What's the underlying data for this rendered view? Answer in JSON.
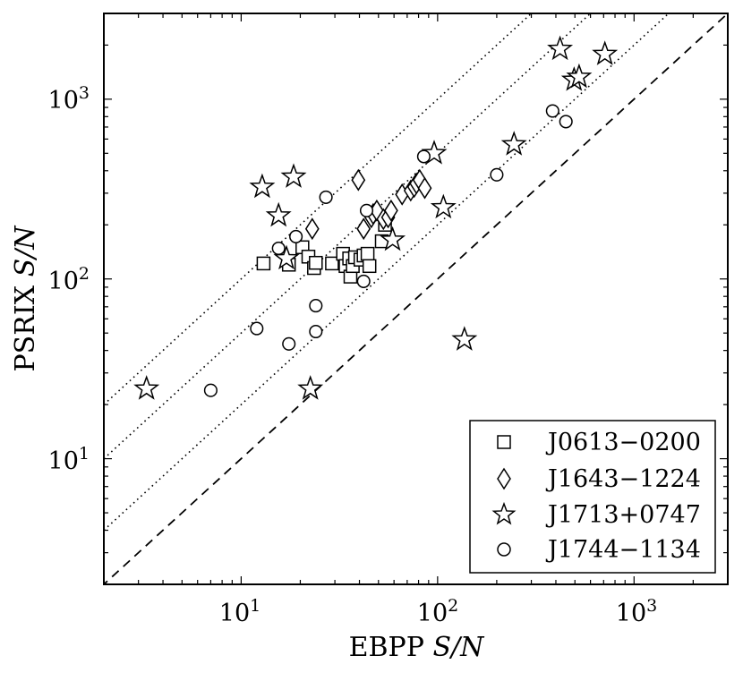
{
  "chart_data": {
    "type": "scatter",
    "xlabel": {
      "text": "EBPP",
      "italic": "S/N"
    },
    "ylabel": {
      "text": "PSRIX",
      "italic": "S/N"
    },
    "x_scale": "log",
    "y_scale": "log",
    "xlim": [
      2,
      3000
    ],
    "ylim": [
      2,
      3000
    ],
    "x_ticks": [
      {
        "base": "10",
        "exp": "1",
        "value": 10
      },
      {
        "base": "10",
        "exp": "2",
        "value": 100
      },
      {
        "base": "10",
        "exp": "3",
        "value": 1000
      }
    ],
    "y_ticks": [
      {
        "base": "10",
        "exp": "1",
        "value": 10
      },
      {
        "base": "10",
        "exp": "2",
        "value": 100
      },
      {
        "base": "10",
        "exp": "3",
        "value": 1000
      }
    ],
    "grid": false,
    "legend_position": "bottom-right",
    "reference_lines": [
      {
        "style": "dashed",
        "ratio": 1
      },
      {
        "style": "dotted",
        "ratio": 2
      },
      {
        "style": "dotted",
        "ratio": 5
      },
      {
        "style": "dotted",
        "ratio": 10
      }
    ],
    "series": [
      {
        "name": "J0613−0200",
        "marker": "square",
        "points": [
          [
            13,
            122
          ],
          [
            17.5,
            120
          ],
          [
            20.5,
            150
          ],
          [
            22,
            133
          ],
          [
            23.5,
            115
          ],
          [
            24,
            123
          ],
          [
            29,
            122
          ],
          [
            33,
            138
          ],
          [
            34,
            118
          ],
          [
            35.5,
            130
          ],
          [
            36,
            103
          ],
          [
            37,
            118
          ],
          [
            38,
            132
          ],
          [
            40.5,
            128
          ],
          [
            42,
            135
          ],
          [
            44,
            138
          ],
          [
            45,
            118
          ],
          [
            52,
            162
          ],
          [
            54,
            200
          ]
        ]
      },
      {
        "name": "J1643−1224",
        "marker": "diamond",
        "points": [
          [
            23,
            190
          ],
          [
            39.5,
            355
          ],
          [
            42,
            190
          ],
          [
            46,
            220
          ],
          [
            47,
            230
          ],
          [
            49,
            240
          ],
          [
            53,
            215
          ],
          [
            56,
            220
          ],
          [
            58,
            240
          ],
          [
            66,
            295
          ],
          [
            73,
            310
          ],
          [
            76,
            325
          ],
          [
            78,
            340
          ],
          [
            81,
            355
          ],
          [
            86,
            320
          ]
        ]
      },
      {
        "name": "J1713+0747",
        "marker": "star",
        "points": [
          [
            3.3,
            24.5
          ],
          [
            12.8,
            325
          ],
          [
            15.5,
            225
          ],
          [
            17,
            130
          ],
          [
            18.5,
            370
          ],
          [
            22.5,
            24.5
          ],
          [
            59,
            165
          ],
          [
            96,
            500
          ],
          [
            107,
            250
          ],
          [
            137,
            46
          ],
          [
            245,
            560
          ],
          [
            420,
            1900
          ],
          [
            495,
            1280
          ],
          [
            525,
            1330
          ],
          [
            710,
            1780
          ]
        ]
      },
      {
        "name": "J1744−1134",
        "marker": "circle",
        "points": [
          [
            7,
            24
          ],
          [
            12,
            53
          ],
          [
            15.5,
            148
          ],
          [
            17.5,
            43.5
          ],
          [
            19,
            172
          ],
          [
            24,
            71
          ],
          [
            24,
            51
          ],
          [
            27,
            285
          ],
          [
            42,
            97
          ],
          [
            43.5,
            240
          ],
          [
            85,
            480
          ],
          [
            200,
            380
          ],
          [
            385,
            860
          ],
          [
            450,
            750
          ]
        ]
      }
    ]
  }
}
